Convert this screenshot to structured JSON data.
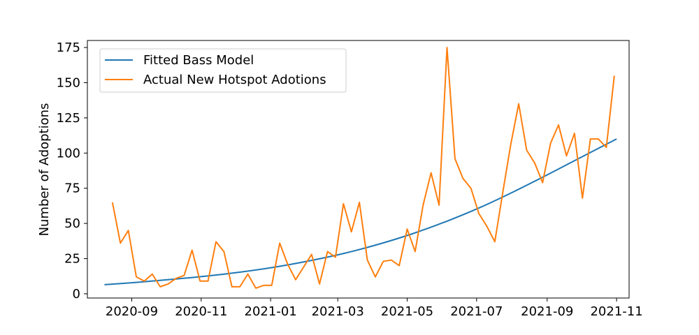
{
  "chart_data": {
    "type": "line",
    "title": "",
    "xlabel": "",
    "ylabel": "Number of Adoptions",
    "ylim": [
      -3,
      180
    ],
    "xlim": [
      "2020-07-24",
      "2021-11-12"
    ],
    "grid": false,
    "legend_position": "top-left",
    "x_ticks": [
      "2020-09",
      "2020-11",
      "2021-01",
      "2021-03",
      "2021-05",
      "2021-07",
      "2021-09",
      "2021-11"
    ],
    "y_ticks": [
      0,
      25,
      50,
      75,
      100,
      125,
      150,
      175
    ],
    "series": [
      {
        "name": "Fitted Bass Model",
        "color": "#1f77b4",
        "x": [
          "2020-08-08",
          "2020-09-07",
          "2020-10-07",
          "2020-11-06",
          "2020-12-06",
          "2021-01-05",
          "2021-02-04",
          "2021-03-06",
          "2021-04-05",
          "2021-05-05",
          "2021-06-04",
          "2021-07-04",
          "2021-08-03",
          "2021-09-02",
          "2021-10-02",
          "2021-11-01"
        ],
        "values": [
          6.5,
          8.2,
          10.3,
          12.6,
          15.5,
          19.0,
          23.4,
          28.6,
          35.0,
          42.5,
          51.3,
          61.3,
          72.7,
          84.9,
          97.5,
          110
        ]
      },
      {
        "name": "Actual New Hotspot Adotions",
        "color": "#ff7f0e",
        "x": [
          "2020-08-15",
          "2020-08-22",
          "2020-08-29",
          "2020-09-05",
          "2020-09-12",
          "2020-09-19",
          "2020-09-26",
          "2020-10-03",
          "2020-10-10",
          "2020-10-17",
          "2020-10-24",
          "2020-10-31",
          "2020-11-07",
          "2020-11-14",
          "2020-11-21",
          "2020-11-28",
          "2020-12-05",
          "2020-12-12",
          "2020-12-19",
          "2020-12-26",
          "2021-01-02",
          "2021-01-09",
          "2021-01-16",
          "2021-01-23",
          "2021-01-30",
          "2021-02-06",
          "2021-02-13",
          "2021-02-20",
          "2021-02-27",
          "2021-03-06",
          "2021-03-13",
          "2021-03-20",
          "2021-03-27",
          "2021-04-03",
          "2021-04-10",
          "2021-04-17",
          "2021-04-24",
          "2021-05-01",
          "2021-05-08",
          "2021-05-15",
          "2021-05-22",
          "2021-05-29",
          "2021-06-05",
          "2021-06-12",
          "2021-06-19",
          "2021-06-26",
          "2021-07-03",
          "2021-07-10",
          "2021-07-17",
          "2021-07-24",
          "2021-07-31",
          "2021-08-07",
          "2021-08-14",
          "2021-08-21",
          "2021-08-28",
          "2021-09-04",
          "2021-09-11",
          "2021-09-18",
          "2021-09-25",
          "2021-10-02",
          "2021-10-09",
          "2021-10-16",
          "2021-10-23",
          "2021-10-30"
        ],
        "values": [
          65,
          36,
          45,
          12,
          9,
          14,
          5,
          7,
          11,
          13,
          31,
          9,
          9,
          37,
          30,
          5,
          5,
          14,
          4,
          6,
          6,
          36,
          21,
          10,
          19,
          28,
          7,
          30,
          26,
          64,
          44,
          65,
          24,
          12,
          23,
          24,
          20,
          46,
          30,
          63,
          86,
          63,
          175,
          96,
          82,
          75,
          57,
          48,
          37,
          72,
          106,
          135,
          102,
          93,
          79,
          107,
          120,
          98,
          114,
          68,
          110,
          110,
          104,
          155
        ]
      }
    ]
  }
}
